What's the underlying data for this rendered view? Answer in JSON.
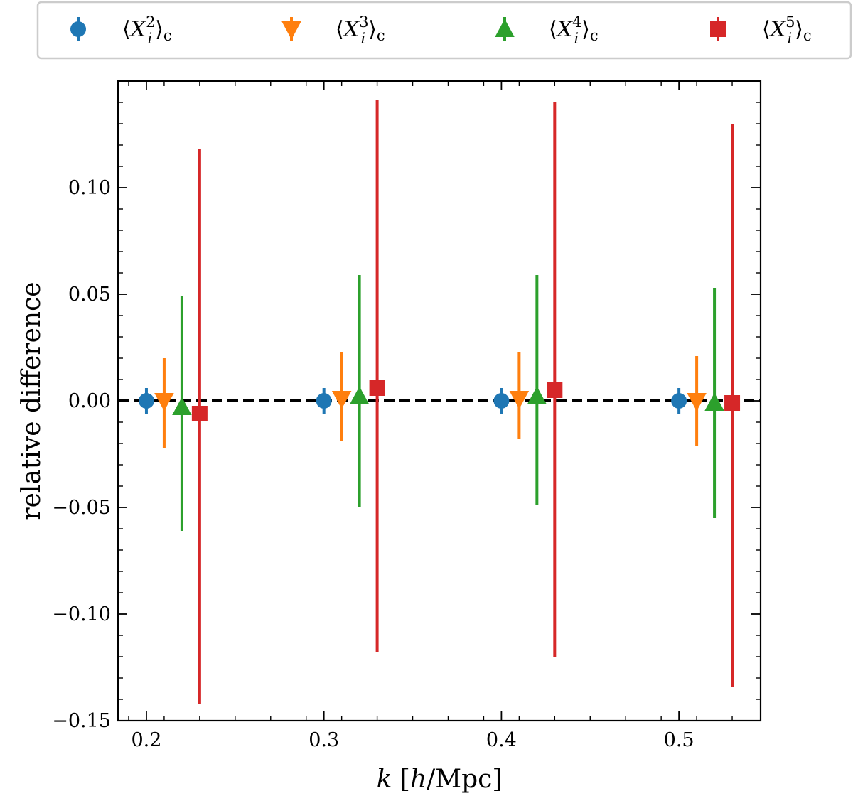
{
  "chart_data": {
    "type": "scatter",
    "title": "",
    "xlabel": "k [h/Mpc]",
    "ylabel": "relative difference",
    "xlim": [
      0.184,
      0.546
    ],
    "ylim": [
      -0.15,
      0.15
    ],
    "x_ticks": [
      0.2,
      0.3,
      0.4,
      0.5
    ],
    "x_tick_labels": [
      "0.2",
      "0.3",
      "0.4",
      "0.5"
    ],
    "y_ticks": [
      -0.15,
      -0.1,
      -0.05,
      0.0,
      0.05,
      0.1
    ],
    "y_tick_labels": [
      "−0.15",
      "−0.10",
      "−0.05",
      "0.00",
      "0.05",
      "0.10"
    ],
    "reference_line": {
      "y": 0.0,
      "style": "dashed",
      "color": "#000000"
    },
    "legend": {
      "placement": "top, outside plot",
      "entries": [
        "⟨X_i^2⟩_c",
        "⟨X_i^3⟩_c",
        "⟨X_i^4⟩_c",
        "⟨X_i^5⟩_c"
      ]
    },
    "series": [
      {
        "name": "⟨X_i^2⟩_c",
        "marker": "circle",
        "color": "#1f77b4",
        "x": [
          0.2,
          0.3,
          0.4,
          0.5
        ],
        "y": [
          0.0,
          0.0,
          0.0,
          0.0
        ],
        "err_low": [
          -0.006,
          -0.006,
          -0.006,
          -0.006
        ],
        "err_high": [
          0.006,
          0.006,
          0.006,
          0.006
        ]
      },
      {
        "name": "⟨X_i^3⟩_c",
        "marker": "triangle-down",
        "color": "#ff7f0e",
        "x": [
          0.21,
          0.31,
          0.41,
          0.51
        ],
        "y": [
          0.0,
          0.001,
          0.001,
          0.0
        ],
        "err_low": [
          -0.022,
          -0.02,
          -0.019,
          -0.021
        ],
        "err_high": [
          0.02,
          0.022,
          0.022,
          0.021
        ]
      },
      {
        "name": "⟨X_i^4⟩_c",
        "marker": "triangle-up",
        "color": "#2ca02c",
        "x": [
          0.22,
          0.32,
          0.42,
          0.52
        ],
        "y": [
          -0.003,
          0.002,
          0.002,
          -0.001
        ],
        "err_low": [
          -0.058,
          -0.052,
          -0.051,
          -0.054
        ],
        "err_high": [
          0.052,
          0.057,
          0.057,
          0.054
        ]
      },
      {
        "name": "⟨X_i^5⟩_c",
        "marker": "square",
        "color": "#d62728",
        "x": [
          0.23,
          0.33,
          0.43,
          0.53
        ],
        "y": [
          -0.006,
          0.006,
          0.005,
          -0.001
        ],
        "err_low": [
          -0.136,
          -0.124,
          -0.125,
          -0.133
        ],
        "err_high": [
          0.124,
          0.135,
          0.135,
          0.131
        ]
      }
    ]
  }
}
